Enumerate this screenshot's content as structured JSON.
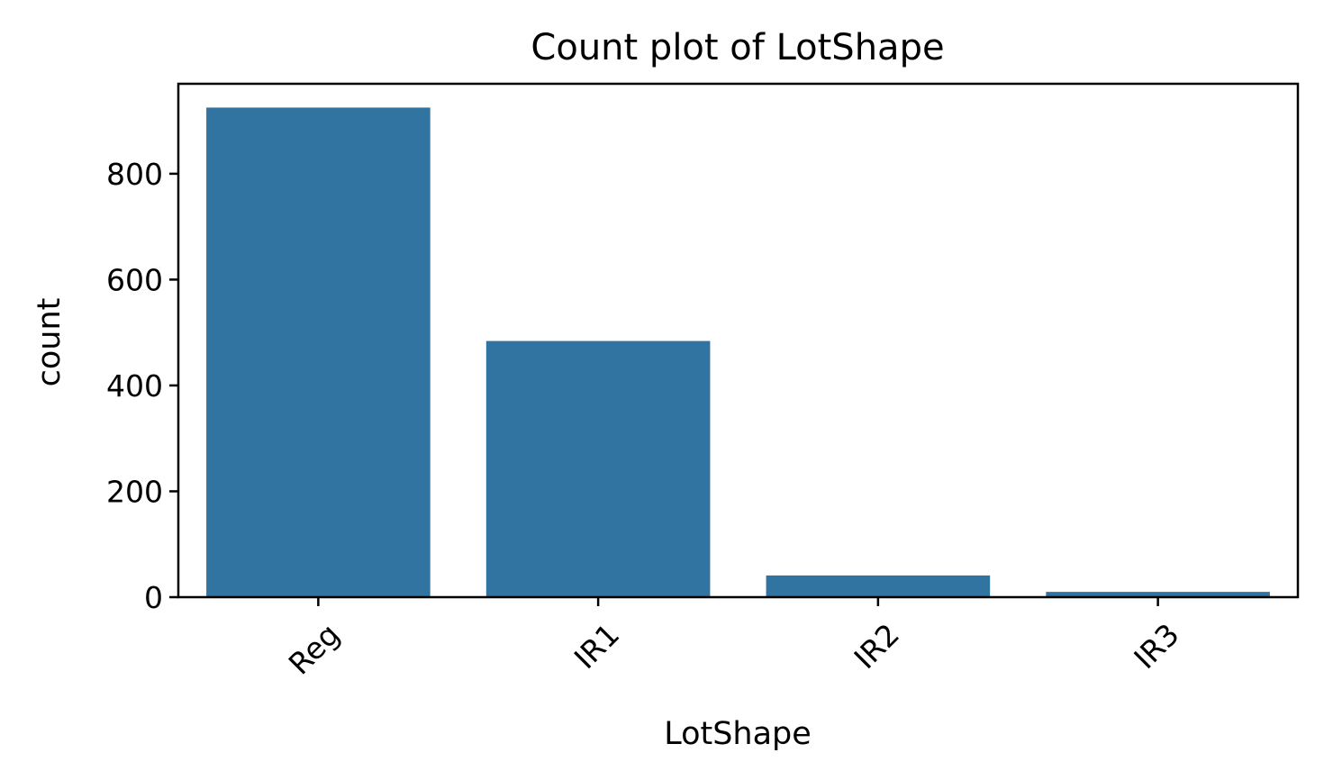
{
  "chart_data": {
    "type": "bar",
    "title": "Count plot of LotShape",
    "xlabel": "LotShape",
    "ylabel": "count",
    "categories": [
      "Reg",
      "IR1",
      "IR2",
      "IR3"
    ],
    "values": [
      925,
      484,
      41,
      10
    ],
    "ylim": [
      0,
      970
    ],
    "yticks": [
      0,
      200,
      400,
      600,
      800
    ],
    "ytick_labels": [
      "0",
      "200",
      "400",
      "600",
      "800"
    ],
    "xtick_rotation_deg": 45,
    "grid": false,
    "legend": "none",
    "colors": {
      "bar": "#3274a1",
      "axes": "#000000",
      "background": "#ffffff"
    }
  }
}
